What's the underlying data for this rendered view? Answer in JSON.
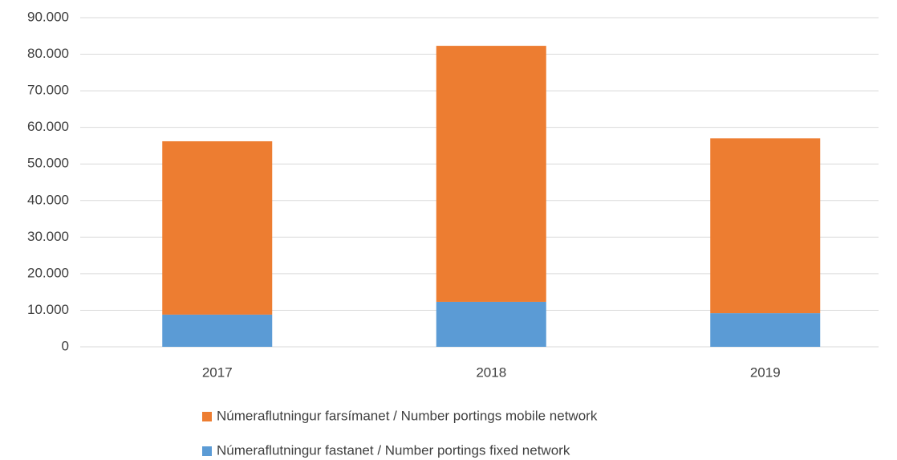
{
  "chart_data": {
    "type": "stacked_bar",
    "categories": [
      "2017",
      "2018",
      "2019"
    ],
    "series": [
      {
        "name": "Númeraflutningur fastanet / Number portings fixed network",
        "color": "#5b9bd5",
        "values": [
          8800,
          12300,
          9200
        ]
      },
      {
        "name": "Númeraflutningur farsímanet / Number portings mobile network",
        "color": "#ed7d31",
        "values": [
          47400,
          70000,
          47800
        ]
      }
    ],
    "ylim": [
      0,
      90000
    ],
    "yticks": [
      0,
      {
        "value": 10000,
        "label": "10.000"
      },
      {
        "value": 20000,
        "label": "20.000"
      },
      {
        "value": 30000,
        "label": "30.000"
      },
      {
        "value": 40000,
        "label": "40.000"
      },
      {
        "value": 50000,
        "label": "50.000"
      },
      {
        "value": 60000,
        "label": "60.000"
      },
      {
        "value": 70000,
        "label": "70.000"
      },
      {
        "value": 80000,
        "label": "80.000"
      },
      {
        "value": 90000,
        "label": "90.000"
      }
    ],
    "grid": true,
    "legend": "bottom"
  }
}
